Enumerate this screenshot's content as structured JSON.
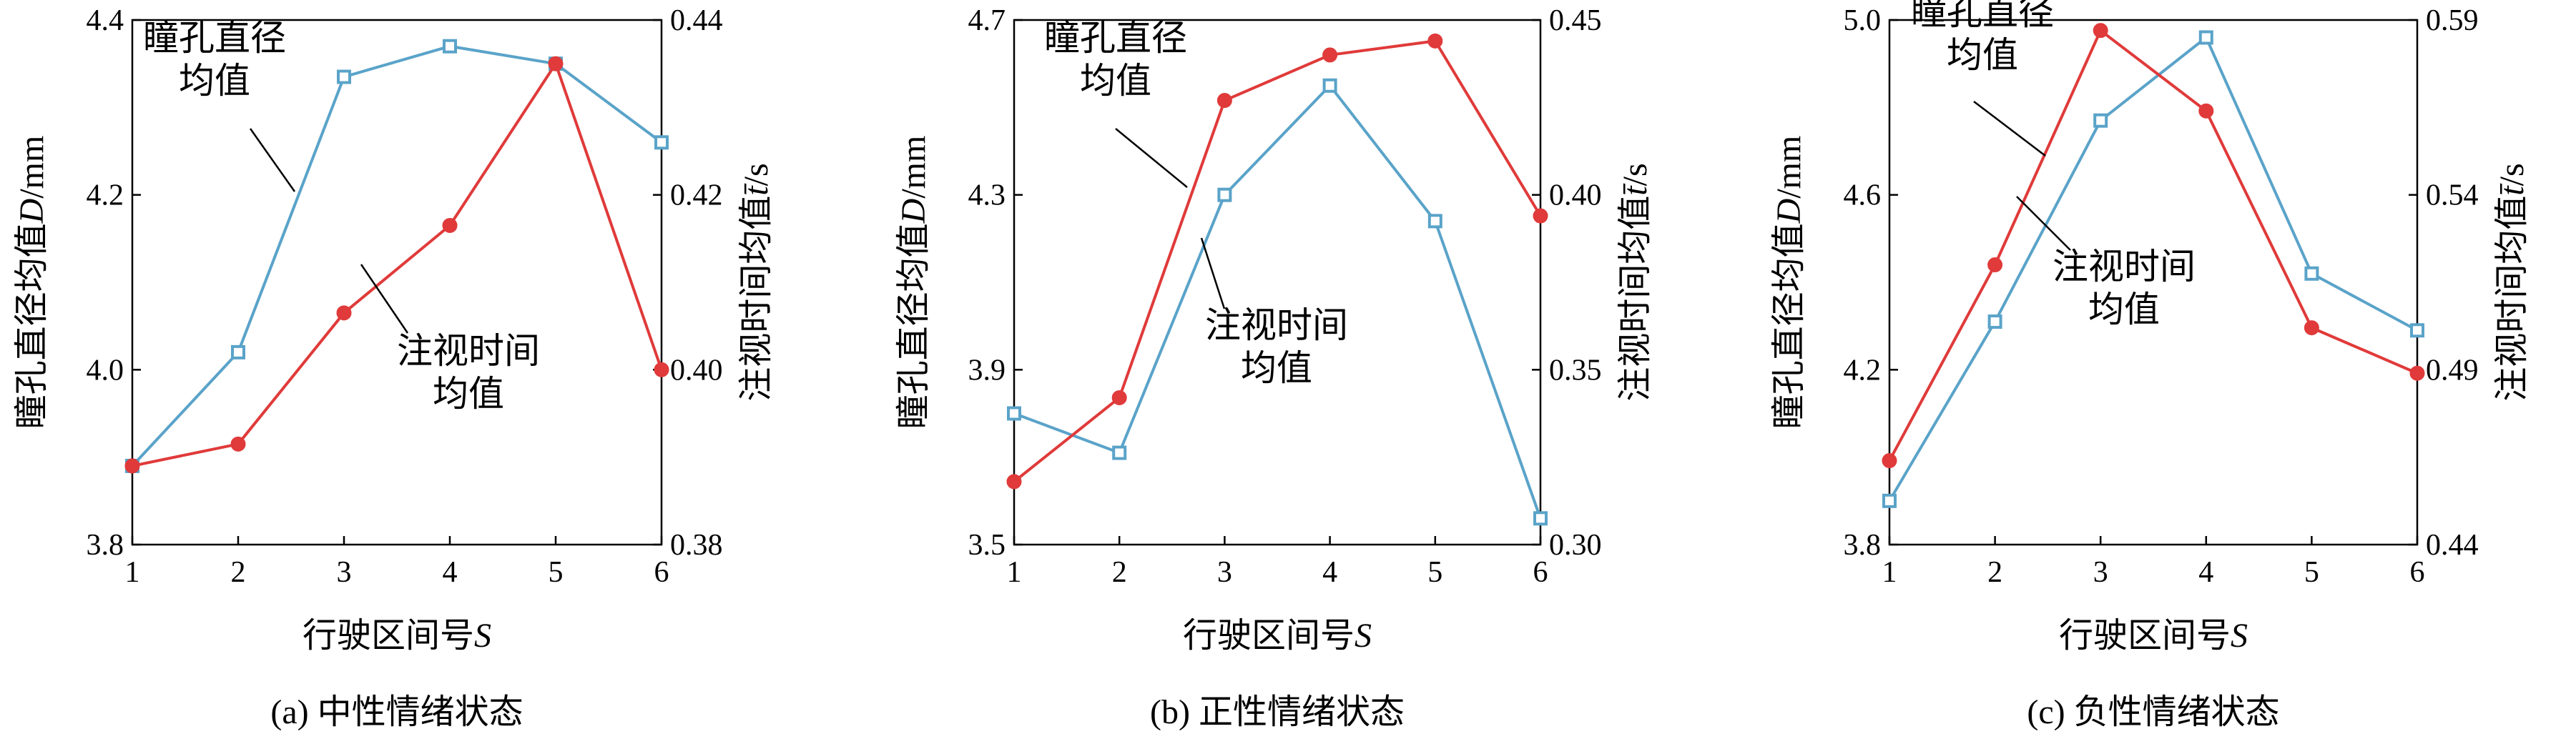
{
  "colors": {
    "pupil": "#5aa3c9",
    "fixation": "#e03a3a",
    "axis": "#000000"
  },
  "chart_data": [
    {
      "type": "line",
      "caption": "(a) 中性情绪状态",
      "xlabel": "行驶区间号",
      "xlabel_symbol": "S",
      "ylabel_left": "瞳孔直径均值",
      "ylabel_left_symbol": "D",
      "ylabel_left_unit": "/mm",
      "ylabel_right": "注视时间均值",
      "ylabel_right_symbol": "t̄",
      "ylabel_right_unit": "/s",
      "x": [
        1,
        2,
        3,
        4,
        5,
        6
      ],
      "xlim": [
        1,
        6
      ],
      "ylim_left": [
        3.8,
        4.4
      ],
      "ylim_right": [
        0.38,
        0.44
      ],
      "yticks_left": [
        "3.8",
        "4.0",
        "4.2",
        "4.4"
      ],
      "yticks_right": [
        "0.38",
        "0.40",
        "0.42",
        "0.44"
      ],
      "series": [
        {
          "name": "瞳孔直径均值",
          "axis": "left",
          "marker": "square",
          "values": [
            3.89,
            4.02,
            4.335,
            4.37,
            4.35,
            4.26
          ]
        },
        {
          "name": "注视时间均值",
          "axis": "right",
          "marker": "circle",
          "values": [
            0.389,
            0.3915,
            0.4065,
            0.4165,
            0.435,
            0.4
          ]
        }
      ],
      "annotations": [
        {
          "lines": [
            "瞳孔直径",
            "均值"
          ]
        },
        {
          "lines": [
            "注视时间",
            "均值"
          ]
        }
      ]
    },
    {
      "type": "line",
      "caption": "(b) 正性情绪状态",
      "xlabel": "行驶区间号",
      "xlabel_symbol": "S",
      "ylabel_left": "瞳孔直径均值",
      "ylabel_left_symbol": "D",
      "ylabel_left_unit": "/mm",
      "ylabel_right": "注视时间均值",
      "ylabel_right_symbol": "t̄",
      "ylabel_right_unit": "/s",
      "x": [
        1,
        2,
        3,
        4,
        5,
        6
      ],
      "xlim": [
        1,
        6
      ],
      "ylim_left": [
        3.5,
        4.7
      ],
      "ylim_right": [
        0.3,
        0.45
      ],
      "yticks_left": [
        "3.5",
        "3.9",
        "4.3",
        "4.7"
      ],
      "yticks_right": [
        "0.30",
        "0.35",
        "0.40",
        "0.45"
      ],
      "series": [
        {
          "name": "瞳孔直径均值",
          "axis": "left",
          "marker": "square",
          "values": [
            3.8,
            3.71,
            4.3,
            4.55,
            4.24,
            3.56
          ]
        },
        {
          "name": "注视时间均值",
          "axis": "right",
          "marker": "circle",
          "values": [
            0.318,
            0.342,
            0.427,
            0.44,
            0.444,
            0.394
          ]
        }
      ],
      "annotations": [
        {
          "lines": [
            "瞳孔直径",
            "均值"
          ]
        },
        {
          "lines": [
            "注视时间",
            "均值"
          ]
        }
      ]
    },
    {
      "type": "line",
      "caption": "(c) 负性情绪状态",
      "xlabel": "行驶区间号",
      "xlabel_symbol": "S",
      "ylabel_left": "瞳孔直径均值",
      "ylabel_left_symbol": "D",
      "ylabel_left_unit": "/mm",
      "ylabel_right": "注视时间均值",
      "ylabel_right_symbol": "t̄",
      "ylabel_right_unit": "/s",
      "x": [
        1,
        2,
        3,
        4,
        5,
        6
      ],
      "xlim": [
        1,
        6
      ],
      "ylim_left": [
        3.8,
        5.0
      ],
      "ylim_right": [
        0.44,
        0.59
      ],
      "yticks_left": [
        "3.8",
        "4.2",
        "4.6",
        "5.0"
      ],
      "yticks_right": [
        "0.44",
        "0.49",
        "0.54",
        "0.59"
      ],
      "series": [
        {
          "name": "瞳孔直径均值",
          "axis": "left",
          "marker": "square",
          "values": [
            3.9,
            4.31,
            4.77,
            4.96,
            4.42,
            4.29
          ]
        },
        {
          "name": "注视时间均值",
          "axis": "right",
          "marker": "circle",
          "values": [
            0.464,
            0.52,
            0.587,
            0.564,
            0.502,
            0.489
          ]
        }
      ],
      "annotations": [
        {
          "lines": [
            "瞳孔直径",
            "均值"
          ]
        },
        {
          "lines": [
            "注视时间",
            "均值"
          ]
        }
      ]
    }
  ]
}
